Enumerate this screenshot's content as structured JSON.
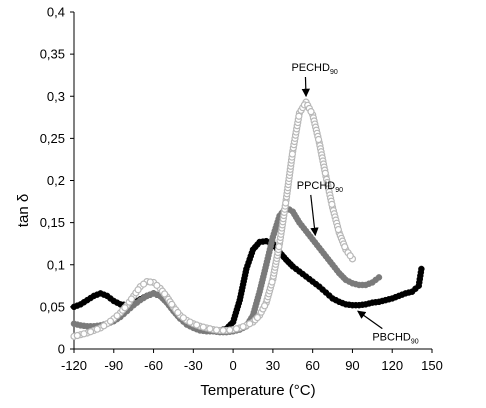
{
  "chart_data": {
    "type": "scatter",
    "title": "",
    "xlabel": "Temperature (°C)",
    "ylabel": "tan δ",
    "xlim": [
      -120,
      150
    ],
    "ylim": [
      0,
      0.4
    ],
    "x_ticks": [
      -120,
      -90,
      -60,
      -30,
      0,
      30,
      60,
      90,
      120,
      150
    ],
    "x_tick_labels": [
      "-120",
      "-90",
      "-60",
      "-30",
      "0",
      "30",
      "60",
      "90",
      "120",
      "150"
    ],
    "y_ticks": [
      0,
      0.05,
      0.1,
      0.15,
      0.2,
      0.25,
      0.3,
      0.35,
      0.4
    ],
    "y_tick_labels": [
      "0",
      "0,05",
      "0,1",
      "0,15",
      "0,2",
      "0,25",
      "0,3",
      "0,35",
      "0,4"
    ],
    "grid": false,
    "legend": "none (direct annotations with arrows)",
    "series": [
      {
        "name": "PBCHD90",
        "label_main": "PBCHD",
        "label_sub": "90",
        "color": "#000000",
        "marker": "filled-circle",
        "x": [
          -120,
          -115,
          -110,
          -105,
          -100,
          -95,
          -90,
          -85,
          -80,
          -75,
          -70,
          -65,
          -60,
          -55,
          -50,
          -45,
          -40,
          -35,
          -30,
          -25,
          -20,
          -15,
          -10,
          -5,
          0,
          5,
          10,
          15,
          20,
          25,
          30,
          35,
          40,
          45,
          50,
          55,
          60,
          65,
          70,
          75,
          80,
          85,
          90,
          95,
          100,
          105,
          110,
          115,
          120,
          125,
          130,
          135,
          140,
          142
        ],
        "y": [
          0.05,
          0.053,
          0.058,
          0.063,
          0.066,
          0.063,
          0.057,
          0.053,
          0.052,
          0.055,
          0.059,
          0.063,
          0.066,
          0.063,
          0.056,
          0.046,
          0.037,
          0.03,
          0.027,
          0.025,
          0.023,
          0.022,
          0.022,
          0.024,
          0.032,
          0.058,
          0.095,
          0.118,
          0.127,
          0.128,
          0.125,
          0.115,
          0.106,
          0.098,
          0.092,
          0.086,
          0.08,
          0.074,
          0.067,
          0.06,
          0.056,
          0.053,
          0.052,
          0.052,
          0.053,
          0.055,
          0.056,
          0.058,
          0.06,
          0.063,
          0.066,
          0.068,
          0.075,
          0.095
        ]
      },
      {
        "name": "PPCHD90",
        "label_main": "PPCHD",
        "label_sub": "90",
        "color": "#7a7a7a",
        "marker": "filled-circle",
        "x": [
          -120,
          -115,
          -110,
          -105,
          -100,
          -95,
          -90,
          -85,
          -80,
          -75,
          -70,
          -65,
          -60,
          -55,
          -50,
          -45,
          -40,
          -35,
          -30,
          -25,
          -20,
          -15,
          -10,
          -5,
          0,
          5,
          10,
          15,
          20,
          25,
          30,
          35,
          40,
          45,
          50,
          55,
          60,
          65,
          70,
          75,
          80,
          85,
          90,
          95,
          100,
          105,
          110
        ],
        "y": [
          0.03,
          0.028,
          0.027,
          0.027,
          0.028,
          0.03,
          0.033,
          0.038,
          0.045,
          0.052,
          0.058,
          0.063,
          0.066,
          0.063,
          0.055,
          0.045,
          0.036,
          0.029,
          0.025,
          0.022,
          0.021,
          0.021,
          0.02,
          0.02,
          0.021,
          0.023,
          0.027,
          0.04,
          0.068,
          0.1,
          0.133,
          0.158,
          0.168,
          0.163,
          0.15,
          0.14,
          0.13,
          0.12,
          0.11,
          0.1,
          0.09,
          0.082,
          0.078,
          0.076,
          0.076,
          0.079,
          0.085
        ]
      },
      {
        "name": "PECHD90",
        "label_main": "PECHD",
        "label_sub": "90",
        "color": "#b8b8b8",
        "marker": "open-circle",
        "x": [
          -120,
          -115,
          -110,
          -105,
          -100,
          -95,
          -90,
          -85,
          -80,
          -75,
          -70,
          -65,
          -60,
          -55,
          -50,
          -45,
          -40,
          -35,
          -30,
          -25,
          -20,
          -15,
          -10,
          -5,
          0,
          5,
          10,
          15,
          20,
          25,
          30,
          35,
          40,
          45,
          50,
          55,
          60,
          65,
          70,
          75,
          80,
          85,
          90
        ],
        "y": [
          0.015,
          0.017,
          0.019,
          0.022,
          0.025,
          0.03,
          0.036,
          0.043,
          0.052,
          0.063,
          0.074,
          0.08,
          0.079,
          0.072,
          0.062,
          0.05,
          0.04,
          0.034,
          0.03,
          0.027,
          0.025,
          0.023,
          0.022,
          0.022,
          0.023,
          0.025,
          0.028,
          0.032,
          0.04,
          0.055,
          0.083,
          0.125,
          0.177,
          0.235,
          0.28,
          0.293,
          0.278,
          0.245,
          0.205,
          0.168,
          0.138,
          0.118,
          0.107
        ]
      }
    ],
    "annotations": [
      {
        "series": "PECHD90",
        "text_main": "PECHD",
        "text_sub": "90",
        "label_at": [
          44,
          0.33
        ],
        "arrow_to": [
          55,
          0.3
        ]
      },
      {
        "series": "PPCHD90",
        "text_main": "PPCHD",
        "text_sub": "90",
        "label_at": [
          48,
          0.19
        ],
        "arrow_to": [
          62,
          0.135
        ]
      },
      {
        "series": "PBCHD90",
        "text_main": "PBCHD",
        "text_sub": "90",
        "label_at": [
          105,
          0.01
        ],
        "arrow_to": [
          94,
          0.045
        ]
      }
    ]
  }
}
